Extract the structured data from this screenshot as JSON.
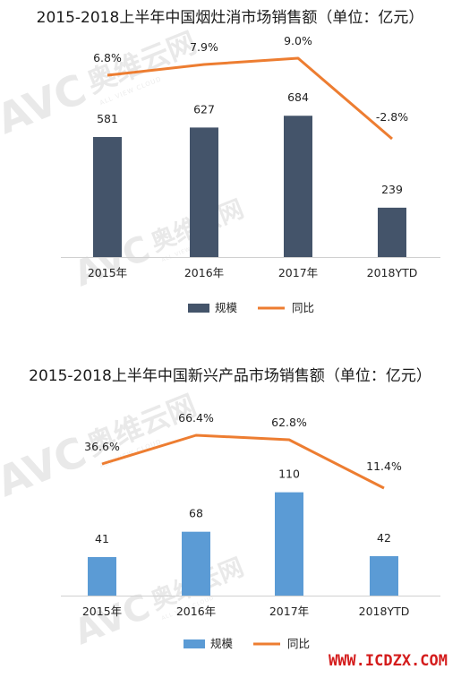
{
  "chart_data": [
    {
      "type": "bar",
      "title": "2015-2018上半年中国烟灶消市场销售额（单位：亿元）",
      "categories": [
        "2015年",
        "2016年",
        "2017年",
        "2018YTD"
      ],
      "series": [
        {
          "name": "规模",
          "type": "bar",
          "values": [
            581,
            627,
            684,
            239
          ],
          "color": "#44546a"
        },
        {
          "name": "同比",
          "type": "line",
          "values": [
            6.8,
            7.9,
            9.0,
            -2.8
          ],
          "labels": [
            "6.8%",
            "7.9%",
            "9.0%",
            "-2.8%"
          ],
          "color": "#ed7d31"
        }
      ],
      "ylim": [
        0,
        800
      ],
      "line_ylim": [
        -10,
        10
      ],
      "grid": false,
      "legend": "bottom"
    },
    {
      "type": "bar",
      "title": "2015-2018上半年中国新兴产品市场销售额（单位：亿元）",
      "categories": [
        "2015年",
        "2016年",
        "2017年",
        "2018YTD"
      ],
      "series": [
        {
          "name": "规模",
          "type": "bar",
          "values": [
            41,
            68,
            110,
            42
          ],
          "color": "#5b9bd5"
        },
        {
          "name": "同比",
          "type": "line",
          "values": [
            36.6,
            66.4,
            62.8,
            11.4
          ],
          "labels": [
            "36.6%",
            "66.4%",
            "62.8%",
            "11.4%"
          ],
          "color": "#ed7d31"
        }
      ],
      "ylim": [
        0,
        160
      ],
      "line_ylim": [
        -120,
        80
      ],
      "grid": false,
      "legend": "bottom"
    }
  ],
  "watermark": {
    "logo": "AVC",
    "cn": "奥维云网",
    "en": "ALL VIEW CLOUD"
  },
  "site_mark": "WWW.ICDZX.COM"
}
